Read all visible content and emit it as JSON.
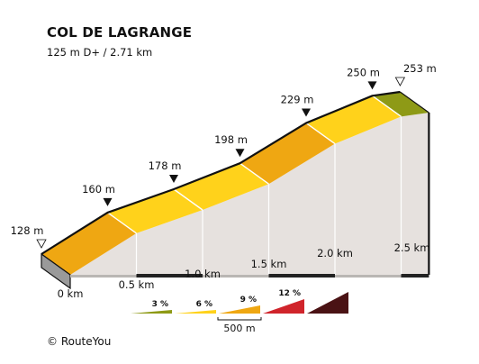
{
  "chart_data": {
    "type": "area",
    "title": "COL DE LAGRANGE",
    "subtitle": "125 m D+ / 2.71 km",
    "units": {
      "x": "km",
      "y": "m"
    },
    "profile_points": [
      {
        "km": 0.0,
        "elevation_m": 128
      },
      {
        "km": 0.5,
        "elevation_m": 160
      },
      {
        "km": 1.0,
        "elevation_m": 178
      },
      {
        "km": 1.5,
        "elevation_m": 198
      },
      {
        "km": 2.0,
        "elevation_m": 229
      },
      {
        "km": 2.5,
        "elevation_m": 250
      },
      {
        "km": 2.71,
        "elevation_m": 253
      }
    ],
    "segments": [
      {
        "from_km": 0.0,
        "to_km": 0.5,
        "gradient_class": "6 %",
        "color": "#EFA712"
      },
      {
        "from_km": 0.5,
        "to_km": 1.0,
        "gradient_class": "3 %",
        "color": "#FFD21B"
      },
      {
        "from_km": 1.0,
        "to_km": 1.5,
        "gradient_class": "3 %",
        "color": "#FFD21B"
      },
      {
        "from_km": 1.5,
        "to_km": 2.0,
        "gradient_class": "6 %",
        "color": "#EFA712"
      },
      {
        "from_km": 2.0,
        "to_km": 2.5,
        "gradient_class": "3 %",
        "color": "#FFD21B"
      },
      {
        "from_km": 2.5,
        "to_km": 2.71,
        "gradient_class": "0 %",
        "color": "#8E9A16"
      }
    ],
    "elevation_labels": [
      "128 m",
      "160 m",
      "178 m",
      "198 m",
      "229 m",
      "250 m",
      "253 m"
    ],
    "x_tick_labels": [
      "0 km",
      "0.5 km",
      "1.0 km",
      "1.5 km",
      "2.0 km",
      "2.5 km"
    ],
    "legend": {
      "items": [
        {
          "label": "3 %",
          "color": "#8E9A16"
        },
        {
          "label": "6 %",
          "color": "#FFD21B"
        },
        {
          "label": "9 %",
          "color": "#EFA712"
        },
        {
          "label": "12 %",
          "color": "#D0242B"
        },
        {
          "label": "",
          "color": "#4A1214"
        }
      ],
      "scale_label": "500 m"
    },
    "colors": {
      "wall": "#E6E1DE",
      "base": "#9A9A9A",
      "base_dark": "#222222",
      "outline": "#111111",
      "divider": "#ffffff"
    }
  },
  "footer": {
    "copyright": "© RouteYou"
  }
}
